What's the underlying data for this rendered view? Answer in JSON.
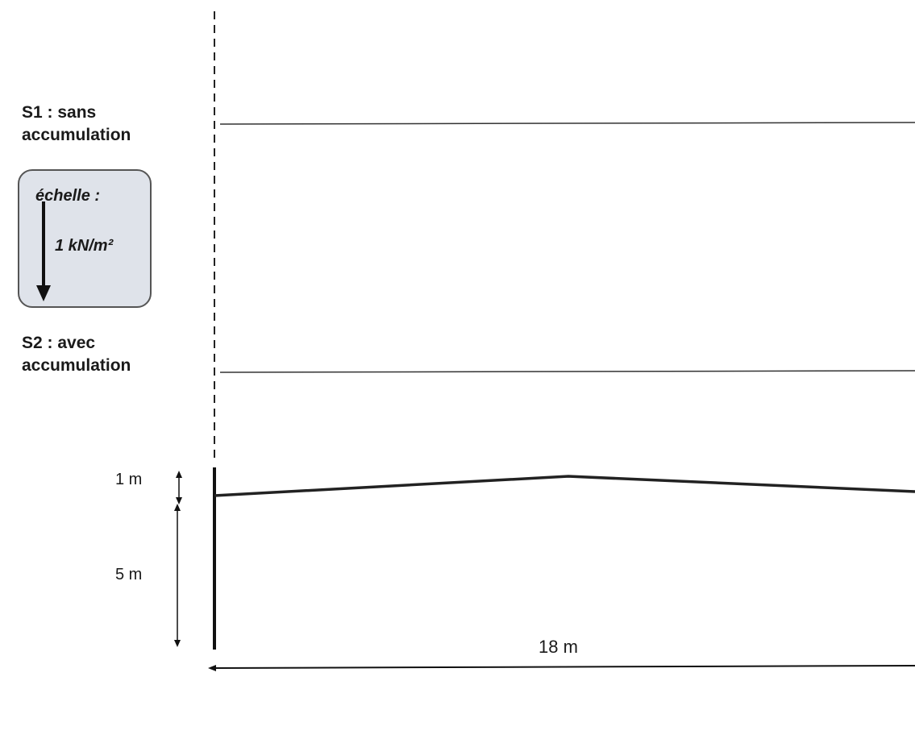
{
  "labels": {
    "s1_line1": "S1 : sans",
    "s1_line2": "accumulation",
    "s2_line1": "S2 : avec",
    "s2_line2": "accumulation"
  },
  "scale": {
    "title": "échelle :",
    "value": "1 kN/m²"
  },
  "dimensions": {
    "rise": "1 m",
    "height": "5 m",
    "span": "18 m"
  }
}
